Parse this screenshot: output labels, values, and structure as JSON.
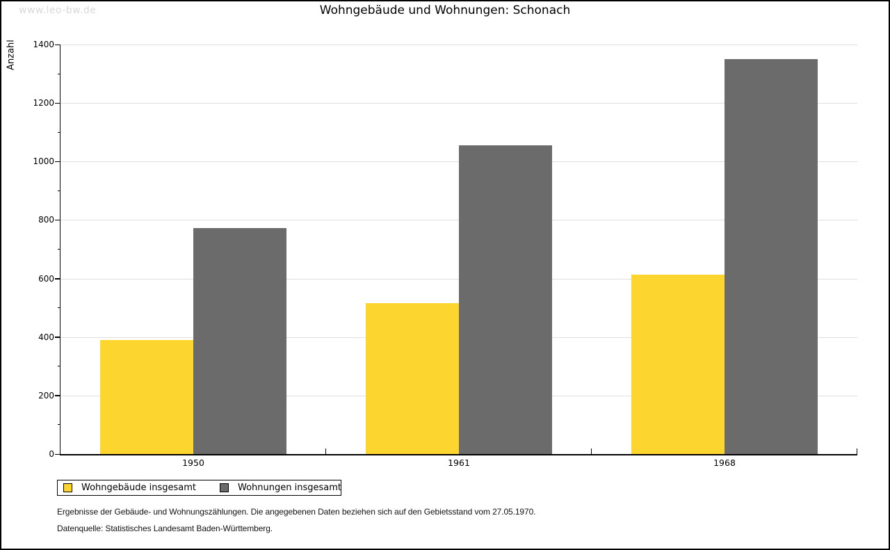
{
  "watermark": "www.leo-bw.de",
  "title": "Wohngebäude und Wohnungen: Schonach",
  "chart_data": {
    "type": "bar",
    "title": "Wohngebäude und Wohnungen: Schonach",
    "categories": [
      "1950",
      "1961",
      "1968"
    ],
    "series": [
      {
        "name": "Wohngebäude insgesamt",
        "color": "#FCD62E",
        "values": [
          390,
          515,
          613
        ]
      },
      {
        "name": "Wohnungen insgesamt",
        "color": "#6B6B6B",
        "values": [
          772,
          1056,
          1350
        ]
      }
    ],
    "xlabel": "",
    "ylabel": "Anzahl",
    "ylim": [
      0,
      1400
    ],
    "ytick_step": 200,
    "yminor_step": 100,
    "grid": "horizontal-major",
    "legend_position": "bottom-left-boxed"
  },
  "colors": {
    "grid": "#DEDEDE",
    "axis": "#000000",
    "watermark": "#D9D9D9",
    "bar_yellow": "#FCD62E",
    "bar_gray": "#6B6B6B"
  },
  "footnotes": [
    "Ergebnisse der Gebäude- und Wohnungszählungen. Die angegebenen Daten beziehen sich auf den Gebietsstand vom 27.05.1970.",
    "Datenquelle: Statistisches Landesamt Baden-Württemberg."
  ]
}
